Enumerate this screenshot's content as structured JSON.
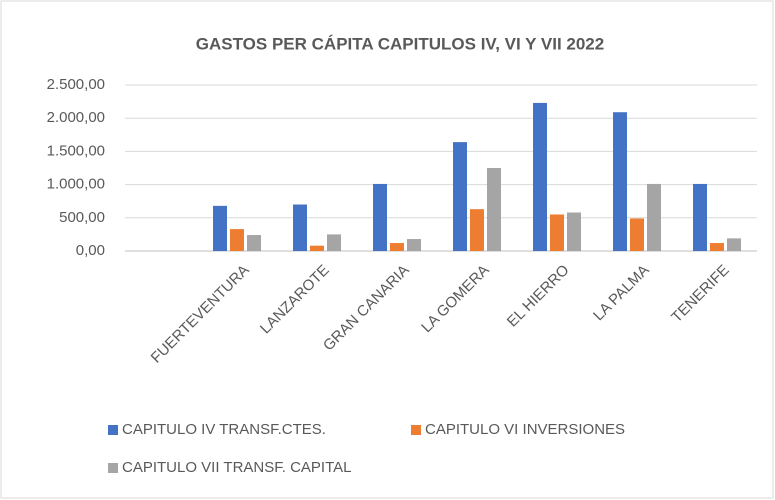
{
  "chart_data": {
    "type": "bar",
    "title": "GASTOS PER CÁPITA CAPITULOS IV, VI Y VII 2022",
    "categories": [
      null,
      "FUERTEVENTURA",
      "LANZAROTE",
      "GRAN CANARIA",
      "LA GOMERA",
      "EL HIERRO",
      "LA PALMA",
      "TENERIFE"
    ],
    "series": [
      {
        "name": "CAPITULO  IV TRANSF.CTES.",
        "color": "#4472c4",
        "values": [
          null,
          680,
          700,
          1010,
          1640,
          2230,
          2090,
          1010
        ]
      },
      {
        "name": "CAPITULO VI INVERSIONES",
        "color": "#ed7d31",
        "values": [
          null,
          330,
          80,
          120,
          630,
          550,
          490,
          120
        ]
      },
      {
        "name": "CAPITULO VII TRANSF. CAPITAL",
        "color": "#a5a5a5",
        "values": [
          null,
          240,
          250,
          180,
          1250,
          580,
          1010,
          190
        ]
      }
    ],
    "ylim": [
      0,
      2500
    ],
    "yticks": [
      {
        "value": 0,
        "label": "0,00"
      },
      {
        "value": 500,
        "label": "500,00"
      },
      {
        "value": 1000,
        "label": "1.000,00"
      },
      {
        "value": 1500,
        "label": "1.500,00"
      },
      {
        "value": 2000,
        "label": "2.000,00"
      },
      {
        "value": 2500,
        "label": "2.500,00"
      }
    ],
    "grid": true,
    "legend": "bottom"
  }
}
